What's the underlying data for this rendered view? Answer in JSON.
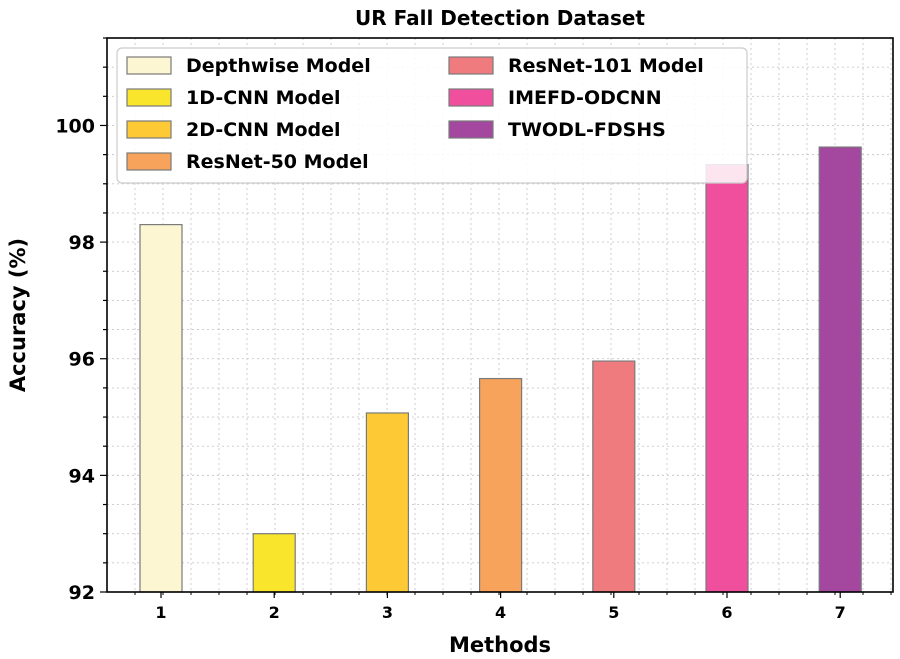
{
  "chart_data": {
    "type": "bar",
    "title": "UR Fall Detection Dataset",
    "xlabel": "Methods",
    "ylabel": "Accuracy (%)",
    "categories": [
      "1",
      "2",
      "3",
      "4",
      "5",
      "6",
      "7"
    ],
    "yticks": [
      "92",
      "94",
      "96",
      "98",
      "100"
    ],
    "ylim": [
      92,
      101.5
    ],
    "grid": true,
    "legend_position": "top",
    "series": [
      {
        "name": "Depthwise Model",
        "values": [
          98.3,
          null,
          null,
          null,
          null,
          null,
          null
        ],
        "color": "#fcf6d2"
      },
      {
        "name": "1D-CNN Model",
        "values": [
          null,
          93.0,
          null,
          null,
          null,
          null,
          null
        ],
        "color": "#f8e52c"
      },
      {
        "name": "2D-CNN Model",
        "values": [
          null,
          null,
          95.07,
          null,
          null,
          null,
          null
        ],
        "color": "#fdca35"
      },
      {
        "name": "ResNet-50 Model",
        "values": [
          null,
          null,
          null,
          95.66,
          null,
          null,
          null
        ],
        "color": "#f8a35b"
      },
      {
        "name": "ResNet-101 Model",
        "values": [
          null,
          null,
          null,
          null,
          95.96,
          null,
          null
        ],
        "color": "#f07b7f"
      },
      {
        "name": "IMEFD-ODCNN",
        "values": [
          null,
          null,
          null,
          null,
          null,
          99.33,
          null
        ],
        "color": "#ef4f9c"
      },
      {
        "name": "TWODL-FDSHS",
        "values": [
          null,
          null,
          null,
          null,
          null,
          null,
          99.63
        ],
        "color": "#a3489e"
      }
    ]
  }
}
